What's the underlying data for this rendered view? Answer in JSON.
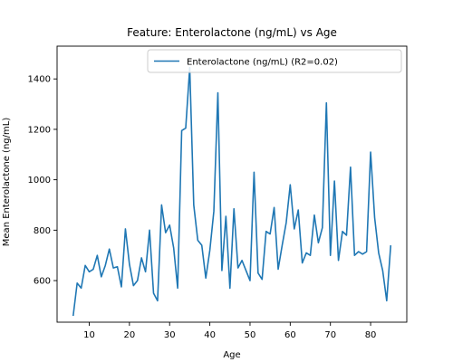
{
  "chart_data": {
    "type": "line",
    "title": "Feature: Enterolactone (ng/mL) vs Age",
    "xlabel": "Age",
    "ylabel": "Mean Enterolactone (ng/mL)",
    "xlim": [
      2,
      89
    ],
    "ylim": [
      435,
      1530
    ],
    "xticks": [
      10,
      20,
      30,
      40,
      50,
      60,
      70,
      80
    ],
    "yticks": [
      600,
      800,
      1000,
      1200,
      1400
    ],
    "legend_position": "top-right",
    "series": [
      {
        "name": "Enterolactone (ng/mL) (R2=0.02)",
        "color": "#1f77b4",
        "x": [
          6,
          7,
          8,
          9,
          10,
          11,
          12,
          13,
          14,
          15,
          16,
          17,
          18,
          19,
          20,
          21,
          22,
          23,
          24,
          25,
          26,
          27,
          28,
          29,
          30,
          31,
          32,
          33,
          34,
          35,
          36,
          37,
          38,
          39,
          40,
          41,
          42,
          43,
          44,
          45,
          46,
          47,
          48,
          49,
          50,
          51,
          52,
          53,
          54,
          55,
          56,
          57,
          58,
          59,
          60,
          61,
          62,
          63,
          64,
          65,
          66,
          67,
          68,
          69,
          70,
          71,
          72,
          73,
          74,
          75,
          76,
          77,
          78,
          79,
          80,
          81,
          82,
          83,
          84,
          85
        ],
        "y": [
          460,
          590,
          570,
          660,
          635,
          645,
          700,
          615,
          660,
          725,
          650,
          655,
          575,
          805,
          665,
          580,
          600,
          690,
          635,
          800,
          550,
          520,
          900,
          790,
          820,
          730,
          570,
          1195,
          1205,
          1445,
          900,
          760,
          740,
          610,
          720,
          875,
          1345,
          640,
          855,
          570,
          885,
          650,
          680,
          640,
          600,
          1030,
          630,
          605,
          795,
          785,
          890,
          645,
          740,
          830,
          980,
          805,
          880,
          670,
          710,
          700,
          860,
          750,
          810,
          1305,
          700,
          995,
          680,
          795,
          780,
          1050,
          700,
          715,
          705,
          715,
          1110,
          850,
          710,
          640,
          520,
          740
        ]
      }
    ]
  }
}
